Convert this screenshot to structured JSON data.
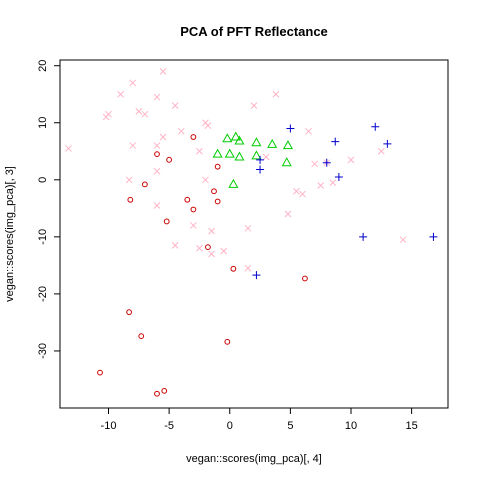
{
  "chart_data": {
    "type": "scatter",
    "title": "PCA of PFT Reflectance",
    "xlabel": "vegan::scores(img_pca)[, 4]",
    "ylabel": "vegan::scores(img_pca)[, 3]",
    "xlim": [
      -14,
      18
    ],
    "ylim": [
      -40,
      21
    ],
    "xticks": [
      -10,
      -5,
      0,
      5,
      10,
      15
    ],
    "yticks": [
      -30,
      -20,
      -10,
      0,
      10,
      20
    ],
    "xtick_labels": [
      "-10",
      "-5",
      "0",
      "5",
      "10",
      "15"
    ],
    "ytick_labels": [
      "-30",
      "-20",
      "-10",
      "0",
      "10",
      "20"
    ],
    "grid": false,
    "series": [
      {
        "marker": "circle",
        "color": "#cc0000",
        "points": [
          [
            -6.0,
            4.5
          ],
          [
            -5.0,
            3.5
          ],
          [
            -3.0,
            7.5
          ],
          [
            -1.0,
            2.3
          ],
          [
            -7.0,
            -0.8
          ],
          [
            -8.2,
            -3.5
          ],
          [
            -3.5,
            -3.5
          ],
          [
            -1.3,
            -2.0
          ],
          [
            -1.0,
            -3.8
          ],
          [
            -3.0,
            -5.2
          ],
          [
            -5.2,
            -7.3
          ],
          [
            -1.8,
            -11.8
          ],
          [
            0.3,
            -15.6
          ],
          [
            6.2,
            -17.3
          ],
          [
            -8.3,
            -23.2
          ],
          [
            -7.3,
            -27.4
          ],
          [
            -0.2,
            -28.4
          ],
          [
            -10.7,
            -33.8
          ],
          [
            -6.0,
            -37.5
          ],
          [
            -5.4,
            -37.0
          ]
        ]
      },
      {
        "marker": "cross",
        "color": "#ffb3c6",
        "points": [
          [
            -5.5,
            19.0
          ],
          [
            -8.0,
            17.0
          ],
          [
            -9.0,
            15.0
          ],
          [
            -6.0,
            14.5
          ],
          [
            -4.5,
            13.0
          ],
          [
            2.0,
            13.0
          ],
          [
            3.8,
            15.0
          ],
          [
            -10.0,
            11.5
          ],
          [
            -10.2,
            11.0
          ],
          [
            -7.5,
            12.0
          ],
          [
            -7.0,
            11.5
          ],
          [
            -4.0,
            8.5
          ],
          [
            -5.5,
            7.5
          ],
          [
            -2.0,
            10.0
          ],
          [
            -1.8,
            9.5
          ],
          [
            6.5,
            8.5
          ],
          [
            -8.0,
            6.0
          ],
          [
            -6.0,
            6.0
          ],
          [
            -2.5,
            5.0
          ],
          [
            3.0,
            4.0
          ],
          [
            8.0,
            3.0
          ],
          [
            10.0,
            3.5
          ],
          [
            12.5,
            5.0
          ],
          [
            -8.3,
            0.0
          ],
          [
            -6.0,
            1.5
          ],
          [
            -2.0,
            0.0
          ],
          [
            5.5,
            -2.0
          ],
          [
            6.0,
            -2.5
          ],
          [
            7.5,
            -1.0
          ],
          [
            8.5,
            -0.5
          ],
          [
            -6.0,
            -4.5
          ],
          [
            -3.0,
            -8.0
          ],
          [
            -1.5,
            -9.0
          ],
          [
            1.5,
            -8.5
          ],
          [
            4.8,
            -6.0
          ],
          [
            -4.5,
            -11.5
          ],
          [
            -2.5,
            -12.0
          ],
          [
            -1.5,
            -13.0
          ],
          [
            -0.5,
            -12.5
          ],
          [
            1.5,
            -15.5
          ],
          [
            7.0,
            2.8
          ],
          [
            -13.3,
            5.5
          ],
          [
            14.3,
            -10.5
          ]
        ]
      },
      {
        "marker": "triangle",
        "color": "#00cc00",
        "points": [
          [
            -0.2,
            7.2
          ],
          [
            0.5,
            7.5
          ],
          [
            0.8,
            6.8
          ],
          [
            2.2,
            6.5
          ],
          [
            3.5,
            6.2
          ],
          [
            4.8,
            6.0
          ],
          [
            -1.0,
            4.5
          ],
          [
            0.0,
            4.5
          ],
          [
            0.8,
            4.0
          ],
          [
            2.2,
            4.2
          ],
          [
            4.7,
            3.0
          ],
          [
            0.3,
            -0.8
          ]
        ]
      },
      {
        "marker": "plus",
        "color": "#0000cc",
        "points": [
          [
            5.0,
            9.0
          ],
          [
            12.0,
            9.3
          ],
          [
            8.7,
            6.7
          ],
          [
            13.0,
            6.3
          ],
          [
            2.5,
            3.5
          ],
          [
            8.0,
            3.0
          ],
          [
            2.5,
            1.8
          ],
          [
            9.0,
            0.5
          ],
          [
            11.0,
            -10.0
          ],
          [
            16.8,
            -10.0
          ],
          [
            2.2,
            -16.7
          ]
        ]
      }
    ]
  }
}
